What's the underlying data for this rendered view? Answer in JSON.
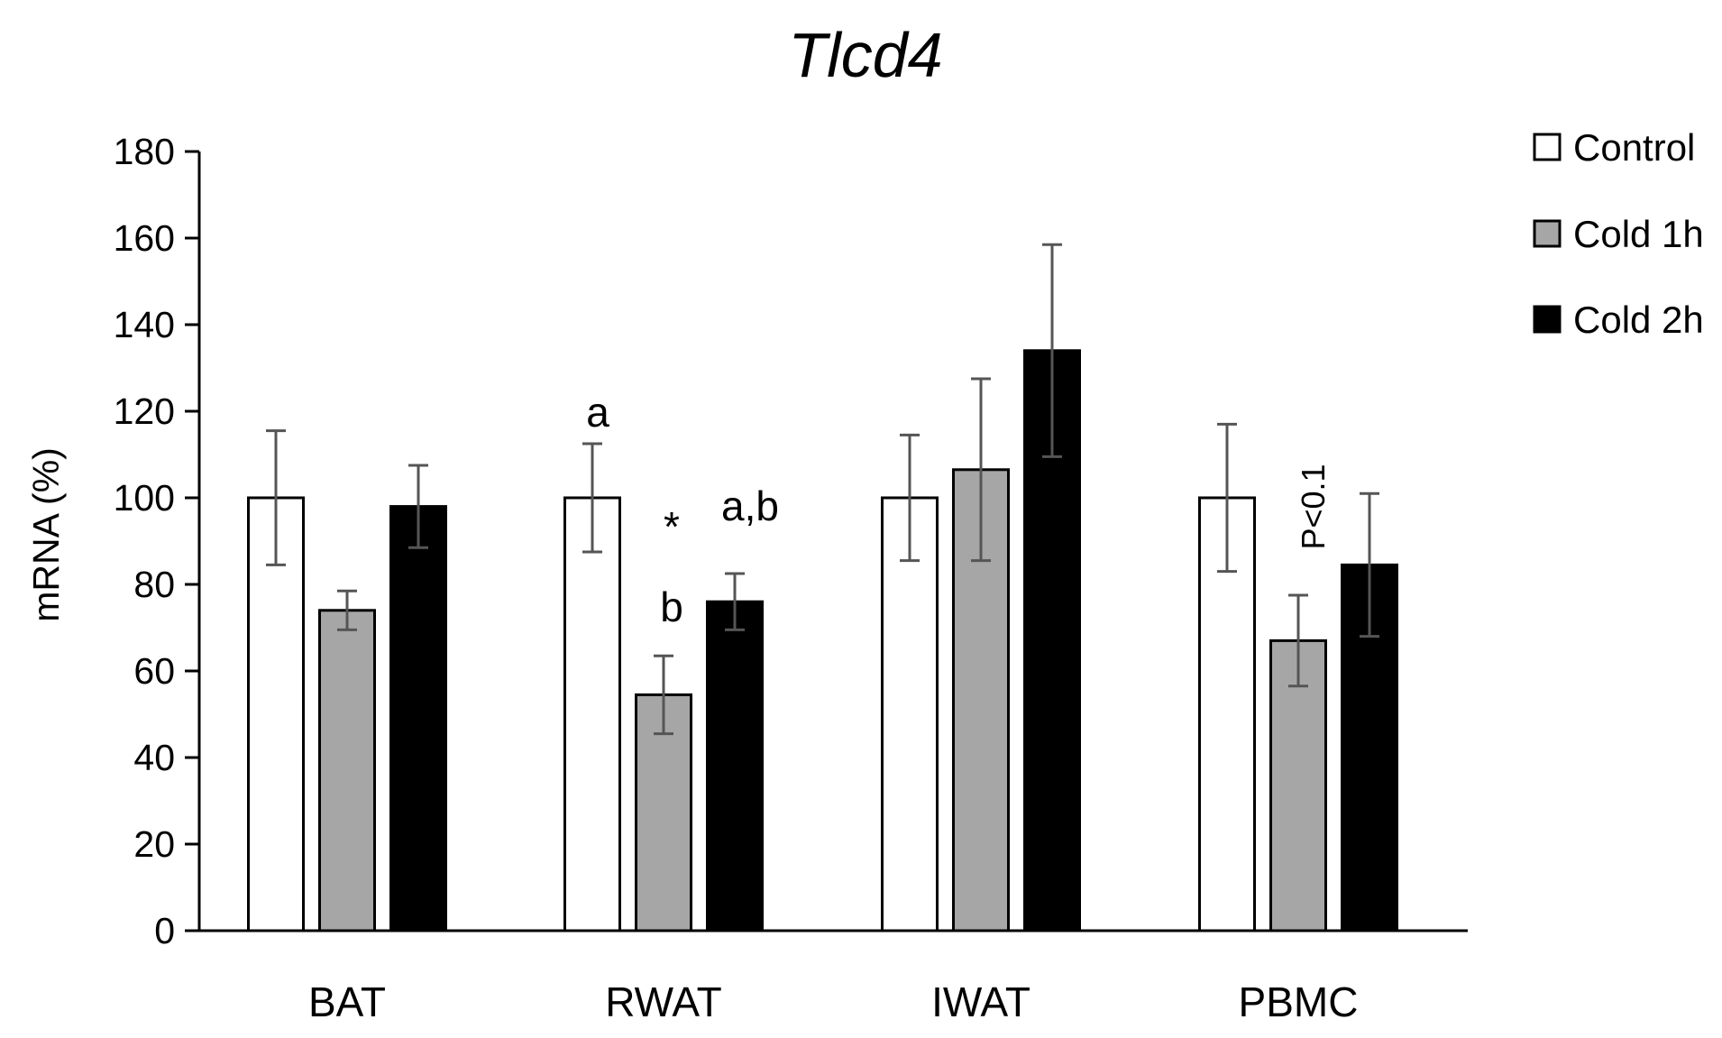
{
  "chart_data": {
    "type": "bar",
    "title": "Tlcd4",
    "xlabel": "",
    "ylabel": "mRNA (%)",
    "ylim": [
      0,
      180
    ],
    "yticks": [
      0,
      20,
      40,
      60,
      80,
      100,
      120,
      140,
      160,
      180
    ],
    "grid": false,
    "legend_position": "top-right",
    "categories": [
      "BAT",
      "RWAT",
      "IWAT",
      "PBMC"
    ],
    "series": [
      {
        "name": "Control",
        "color": "#ffffff",
        "values": [
          100,
          100,
          100,
          100
        ],
        "errors": [
          15.5,
          12.5,
          14.5,
          17
        ]
      },
      {
        "name": "Cold 1h",
        "color": "#a6a6a6",
        "values": [
          74,
          54.5,
          106.5,
          67
        ],
        "errors": [
          4.5,
          9,
          21,
          10.5
        ]
      },
      {
        "name": "Cold 2h",
        "color": "#000000",
        "values": [
          98,
          76,
          134,
          84.5
        ],
        "errors": [
          9.5,
          6.5,
          24.5,
          16.5
        ]
      }
    ],
    "annotations": [
      {
        "text": "a",
        "category": "RWAT",
        "series": "Control"
      },
      {
        "text": "*",
        "category": "RWAT",
        "series": "Cold 1h"
      },
      {
        "text": "b",
        "category": "RWAT",
        "series": "Cold 1h"
      },
      {
        "text": "a,b",
        "category": "RWAT",
        "series": "Cold 2h"
      },
      {
        "text": "P<0.1",
        "category": "PBMC",
        "series": "Cold 1h",
        "rotated": true
      }
    ]
  }
}
